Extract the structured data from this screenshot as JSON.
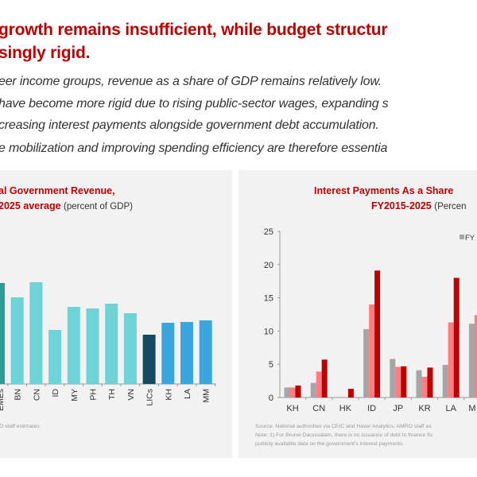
{
  "header": {
    "title_line1": "growth remains insufficient, while budget structur",
    "title_line2": "singly rigid.",
    "bullets": [
      "eer income groups, revenue as a share of GDP remains relatively low.",
      " have become more rigid due to rising public-sector wages, expanding s",
      "creasing interest payments alongside government debt accumulation.",
      "e mobilization and improving spending efficiency are therefore essentia"
    ]
  },
  "colors": {
    "accent": "#c00000",
    "eme": "#2a9d9a",
    "asean": "#6dd3d6",
    "lic": "#164a63",
    "lic_member": "#3aa6e0",
    "grey": "#a6a6a6",
    "pink": "#ff7c80",
    "red": "#c00000"
  },
  "chart_data": [
    {
      "type": "bar",
      "title_line1": "al Government Revenue,",
      "title_line2": "2025 average",
      "subtitle": "(percent of GDP)",
      "categories": [
        "EMEs",
        "BN",
        "CN",
        "ID",
        "MY",
        "PH",
        "TH",
        "VN",
        "LICs",
        "KH",
        "LA",
        "MM"
      ],
      "values": [
        25.4,
        21.8,
        25.6,
        13.6,
        19.4,
        19.0,
        20.2,
        17.8,
        12.4,
        15.4,
        15.6,
        16.0
      ],
      "groups": [
        "eme",
        "asean",
        "asean",
        "asean",
        "asean",
        "asean",
        "asean",
        "asean",
        "lic",
        "lic_member",
        "lic_member",
        "lic_member"
      ],
      "source": "O staff estimates"
    },
    {
      "type": "bar",
      "title_line1": "Interest Payments As a Share",
      "title_line2": "FY2015-2025",
      "subtitle": "(Percen",
      "ylim": [
        0,
        25
      ],
      "yticks": [
        0,
        5,
        10,
        15,
        20,
        25
      ],
      "categories": [
        "KH",
        "CN",
        "HK",
        "ID",
        "JP",
        "KR",
        "LA",
        "M"
      ],
      "legend_visible": "FY",
      "legend_placement": "top-right",
      "series": [
        {
          "color": "grey",
          "values": [
            1.5,
            2.2,
            0,
            10.3,
            5.8,
            4.1,
            4.9,
            11.1
          ]
        },
        {
          "color": "pink",
          "values": [
            1.5,
            3.9,
            0,
            14.0,
            4.6,
            3.1,
            11.3,
            12.4
          ]
        },
        {
          "color": "red",
          "values": [
            1.8,
            5.7,
            1.3,
            19.1,
            4.7,
            4.5,
            18.0,
            null
          ]
        }
      ],
      "notes": [
        "Source: National authorities via CEIC and Haver Analytics; AMRO staff es",
        "Note: 1) For Brunei Darussalam, there is no issuance of debt to finance fis",
        "publicly available data on the government's interest payments."
      ]
    }
  ]
}
